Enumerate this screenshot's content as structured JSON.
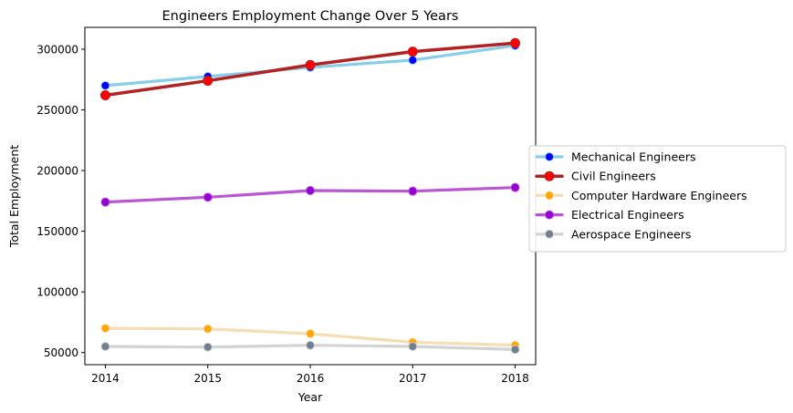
{
  "chart_data": {
    "type": "line",
    "title": "Engineers Employment Change Over 5 Years",
    "xlabel": "Year",
    "ylabel": "Total Employment",
    "x": [
      2014,
      2015,
      2016,
      2017,
      2018
    ],
    "xticks": [
      "2014",
      "2015",
      "2016",
      "2017",
      "2018"
    ],
    "yticks": [
      50000,
      100000,
      150000,
      200000,
      250000,
      300000
    ],
    "ylim": [
      40000,
      318000
    ],
    "grid": false,
    "legend_position": "right",
    "series": [
      {
        "name": "Mechanical Engineers",
        "values": [
          270000,
          277500,
          285000,
          291000,
          303000
        ],
        "line_color": "#87CEEB",
        "marker_color": "#0000FF",
        "line_width": 3.2,
        "marker_size": 4.5
      },
      {
        "name": "Civil Engineers",
        "values": [
          262000,
          274000,
          287000,
          298000,
          305000
        ],
        "line_color": "#B22222",
        "marker_color": "#FF0000",
        "line_width": 3.5,
        "marker_size": 5
      },
      {
        "name": "Computer Hardware Engineers",
        "values": [
          70000,
          69500,
          65500,
          58500,
          56000
        ],
        "line_color": "#F5DEB3",
        "marker_color": "#FFA500",
        "line_width": 3.2,
        "marker_size": 4.5
      },
      {
        "name": "Electrical Engineers",
        "values": [
          174000,
          178000,
          183500,
          183000,
          186000
        ],
        "line_color": "#BA55D3",
        "marker_color": "#9400D3",
        "line_width": 3.2,
        "marker_size": 4.5
      },
      {
        "name": "Aerospace Engineers",
        "values": [
          55000,
          54500,
          56000,
          55000,
          52500
        ],
        "line_color": "#D3D3D3",
        "marker_color": "#708090",
        "line_width": 3.2,
        "marker_size": 4.5
      }
    ]
  }
}
